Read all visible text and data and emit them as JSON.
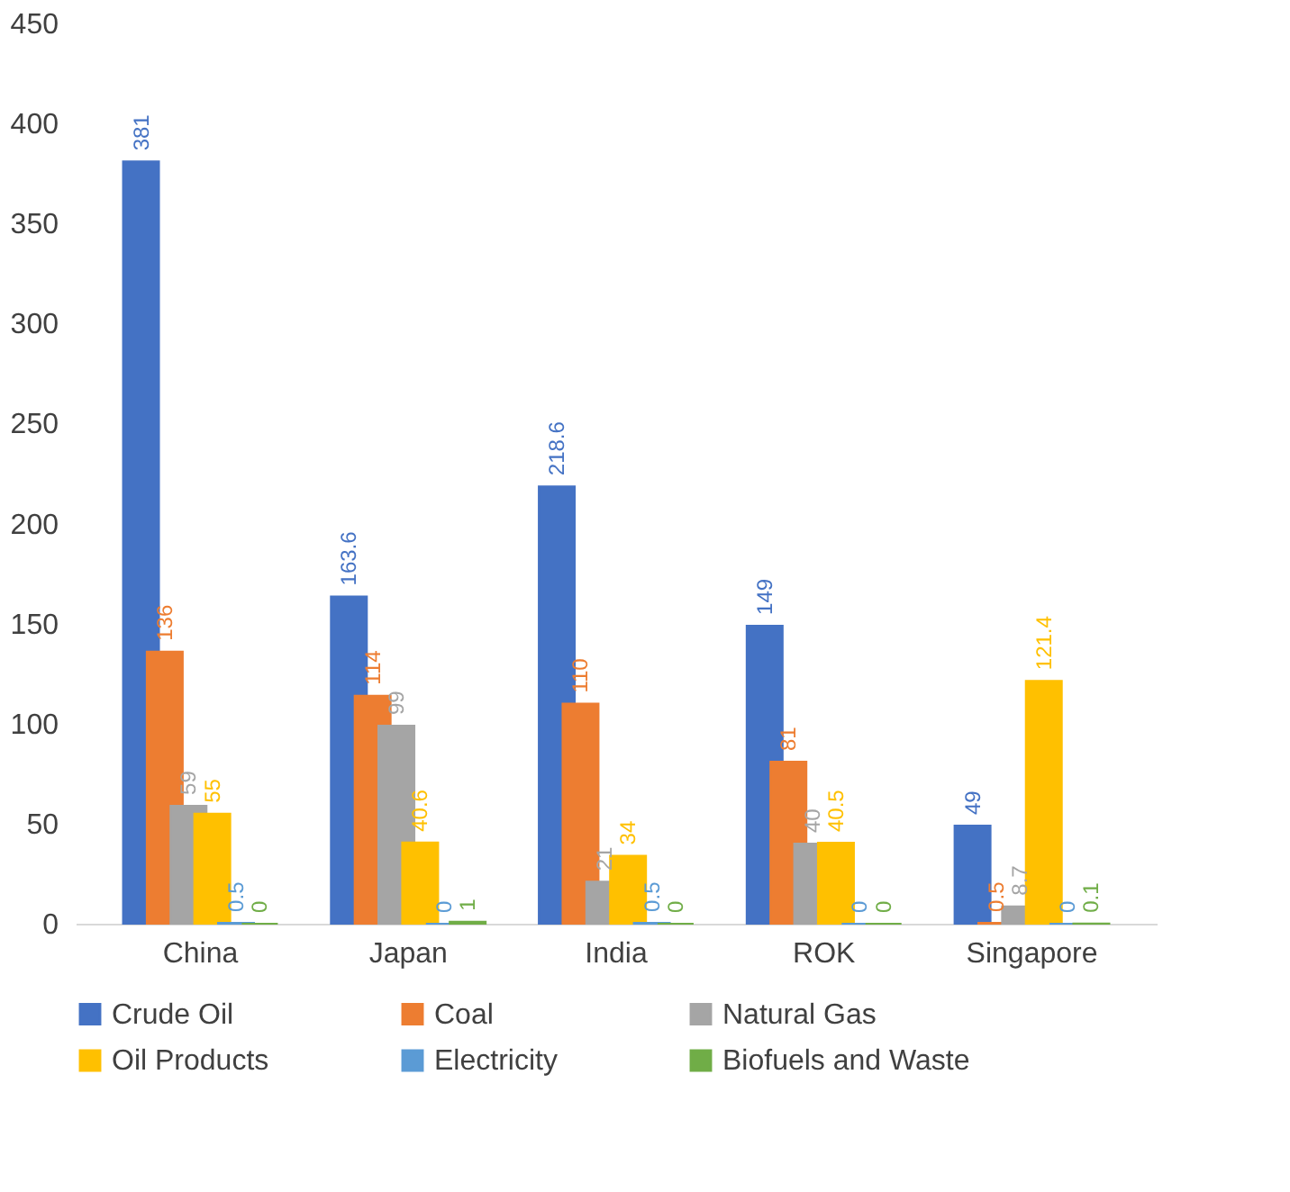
{
  "chart_data": {
    "type": "bar",
    "categories": [
      "China",
      "Japan",
      "India",
      "ROK",
      "Singapore"
    ],
    "series": [
      {
        "name": "Crude Oil",
        "color": "#4472c4",
        "values": [
          381,
          163.6,
          218.6,
          149,
          49
        ]
      },
      {
        "name": "Coal",
        "color": "#ed7d31",
        "values": [
          136,
          114,
          110,
          81,
          0.5
        ]
      },
      {
        "name": "Natural Gas",
        "color": "#a5a5a5",
        "values": [
          59,
          99,
          21,
          40,
          8.7
        ]
      },
      {
        "name": "Oil Products",
        "color": "#ffc000",
        "values": [
          55,
          40.6,
          34,
          40.5,
          121.4
        ]
      },
      {
        "name": "Electricity",
        "color": "#5b9bd5",
        "values": [
          0.5,
          0,
          0.5,
          0,
          0
        ]
      },
      {
        "name": "Biofuels and Waste",
        "color": "#70ad47",
        "values": [
          0,
          1,
          0,
          0,
          0.1
        ]
      }
    ],
    "ylim": [
      0,
      450
    ],
    "yticks": [
      0,
      50,
      100,
      150,
      200,
      250,
      300,
      350,
      400,
      450
    ],
    "grid": false,
    "legend": "bottom",
    "data_labels": true
  }
}
